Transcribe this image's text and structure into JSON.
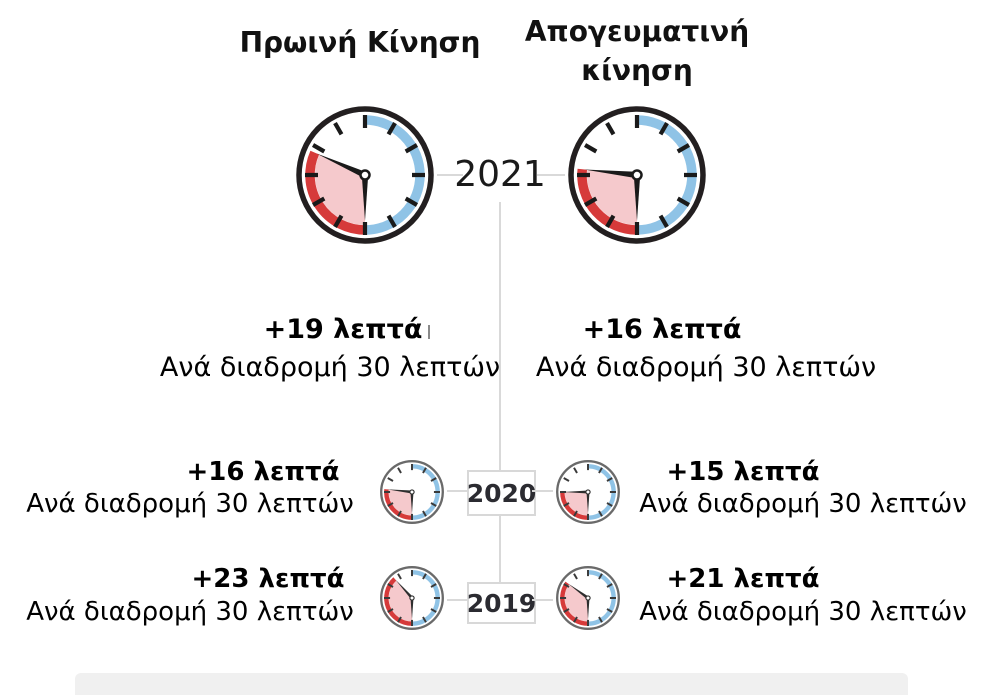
{
  "titles": {
    "morning": "Πρωινή Κίνηση",
    "afternoon": "Απογευματινή κίνηση"
  },
  "timeline": {
    "y2021": "2021",
    "y2020": "2020",
    "y2019": "2019"
  },
  "stats": {
    "morning_2021": {
      "delta": "+19 λεπτά",
      "caption": "Ανά διαδρομή 30 λεπτών"
    },
    "afternoon_2021": {
      "delta": "+16 λεπτά",
      "caption": "Ανά διαδρομή 30 λεπτών"
    },
    "morning_2020": {
      "delta": "+16 λεπτά",
      "caption": "Ανά διαδρομή 30 λεπτών"
    },
    "afternoon_2020": {
      "delta": "+15 λεπτά",
      "caption": "Ανά διαδρομή 30 λεπτών"
    },
    "morning_2019": {
      "delta": "+23 λεπτά",
      "caption": "Ανά διαδρομή 30 λεπτών"
    },
    "afternoon_2019": {
      "delta": "+21 λεπτά",
      "caption": "Ανά διαδρομή 30 λεπτών"
    }
  },
  "clocks": {
    "morning_2021": {
      "baseline_minutes": 30,
      "extra_minutes": 19
    },
    "afternoon_2021": {
      "baseline_minutes": 30,
      "extra_minutes": 16
    },
    "morning_2020": {
      "baseline_minutes": 30,
      "extra_minutes": 16
    },
    "afternoon_2020": {
      "baseline_minutes": 30,
      "extra_minutes": 15
    },
    "morning_2019": {
      "baseline_minutes": 30,
      "extra_minutes": 23
    },
    "afternoon_2019": {
      "baseline_minutes": 30,
      "extra_minutes": 21
    }
  },
  "colors": {
    "baseline_band": "#8fc3e6",
    "extra_band": "#d63a3a",
    "extra_fill": "#f5c9cc",
    "outline_large": "#231f20",
    "outline_small": "#6a6a6a",
    "connector": "#d9d9d9"
  },
  "chart_data": {
    "type": "table",
    "categories": [
      "2021",
      "2020",
      "2019"
    ],
    "series": [
      {
        "name": "Πρωινή Κίνηση",
        "values": [
          19,
          16,
          23
        ]
      },
      {
        "name": "Απογευματινή κίνηση",
        "values": [
          16,
          15,
          21
        ]
      }
    ],
    "unit": "λεπτά",
    "baseline_trip_minutes": 30,
    "caption_per_row": "Ανά διαδρομή 30 λεπτών"
  }
}
